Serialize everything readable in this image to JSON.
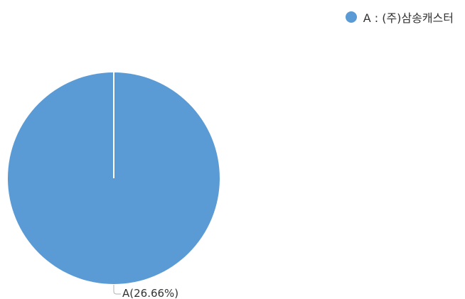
{
  "chart_data": {
    "type": "pie",
    "slices": [
      {
        "label": "A : (주)삼송캐스터",
        "short_label": "A",
        "value": 26.66,
        "data_label": "A(26.66%)"
      }
    ],
    "legend": {
      "position": "top-right"
    },
    "colors": {
      "slice": "#5b9bd5",
      "separator": "#ffffff",
      "leader_line": "#bfbfbf",
      "text": "#333333"
    }
  }
}
